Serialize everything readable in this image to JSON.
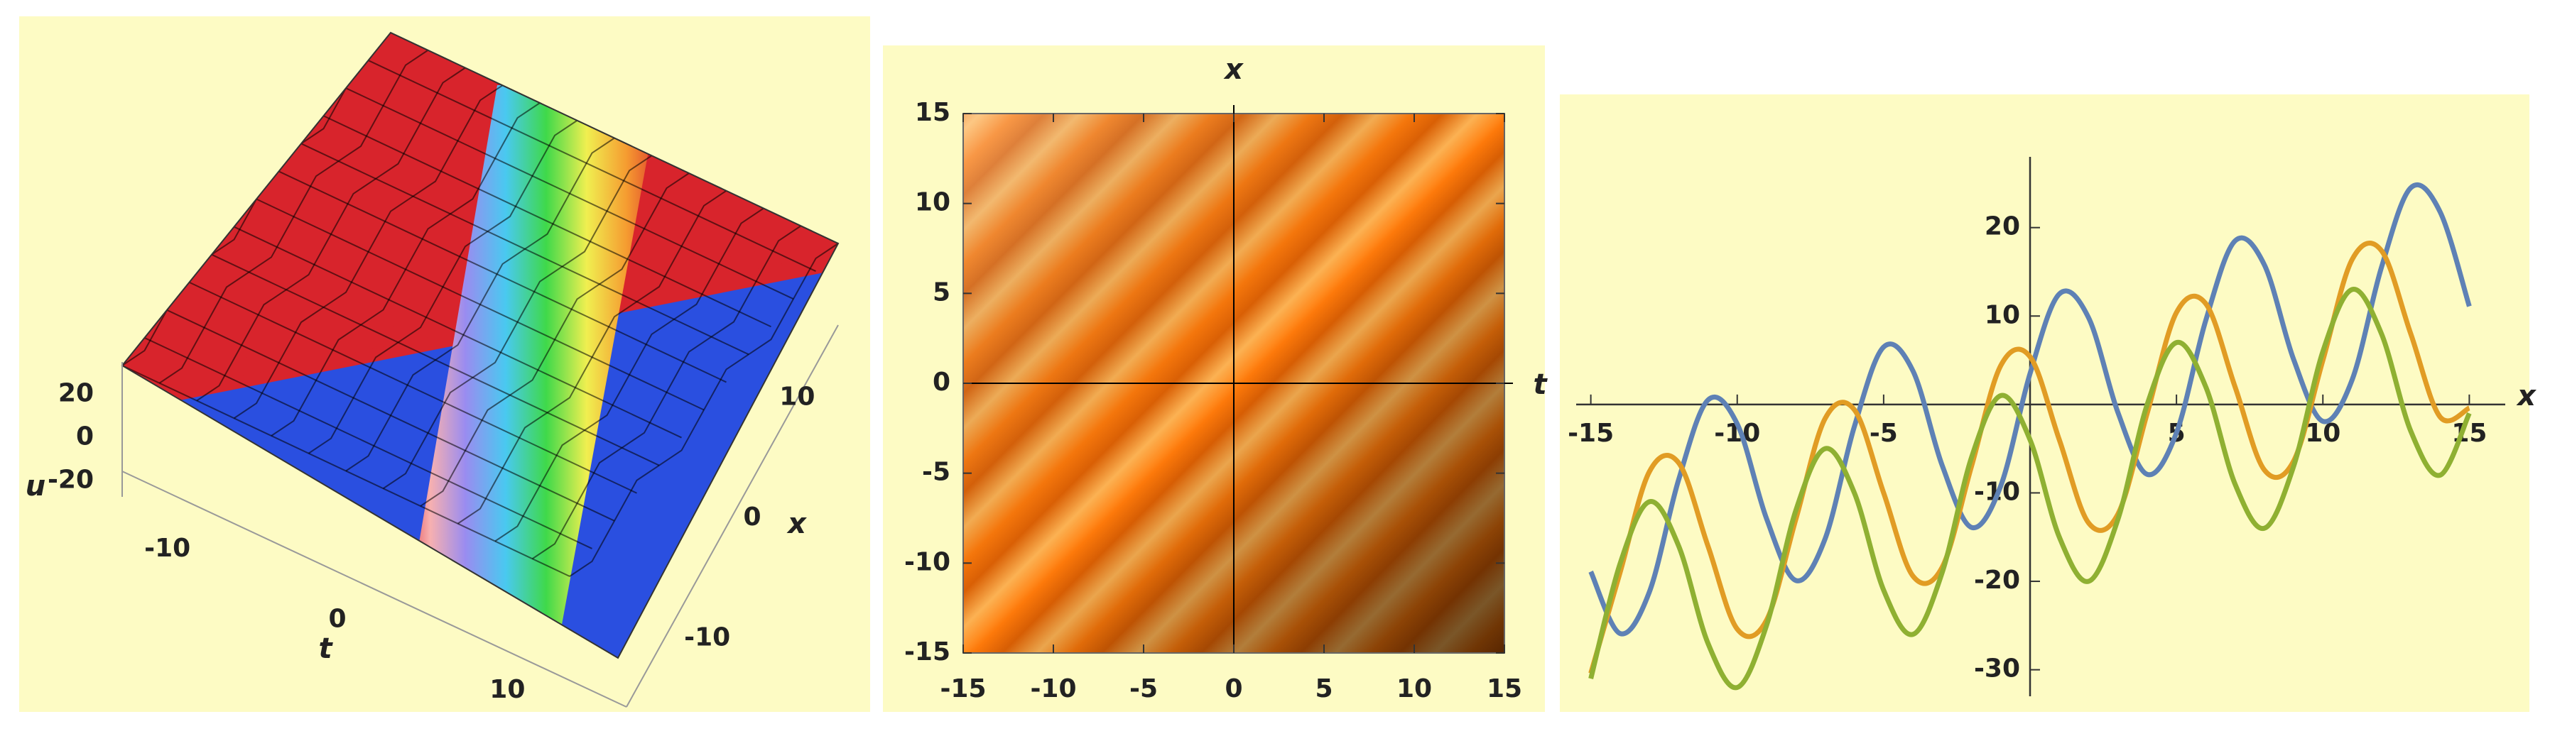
{
  "chart_data": [
    {
      "type": "surface3d",
      "xlabel": "x",
      "ylabel": "t",
      "zlabel": "u",
      "xlim": [
        -15,
        15
      ],
      "xticks": [
        -10,
        0,
        10
      ],
      "ylim": [
        -15,
        15
      ],
      "yticks": [
        -10,
        0,
        10
      ],
      "zlim": [
        -30,
        30
      ],
      "zticks": [
        -20,
        0,
        20
      ]
    },
    {
      "type": "density",
      "xlabel": "t",
      "ylabel": "x",
      "xlim": [
        -15,
        15
      ],
      "xticks": [
        -15,
        -10,
        -5,
        0,
        5,
        10,
        15
      ],
      "ylim": [
        -15,
        15
      ],
      "yticks": [
        -15,
        -10,
        -5,
        0,
        5,
        10,
        15
      ]
    },
    {
      "type": "line",
      "xlabel": "x",
      "x": [
        -15,
        -14,
        -13,
        -12,
        -11,
        -10,
        -9,
        -8,
        -7,
        -6,
        -5,
        -4,
        -3,
        -2,
        -1,
        0,
        1,
        2,
        3,
        4,
        5,
        6,
        7,
        8,
        9,
        10,
        11,
        12,
        13,
        14,
        15
      ],
      "xlim": [
        -15.5,
        15.5
      ],
      "xticks": [
        -15,
        -10,
        -5,
        5,
        10,
        15
      ],
      "ylim": [
        -33,
        28
      ],
      "yticks": [
        -30,
        -20,
        -10,
        10,
        20
      ],
      "series": [
        {
          "color": "#5e81b5",
          "values": [
            -18.9,
            -25.9,
            -21.2,
            -8.5,
            0.5,
            -2.2,
            -12.9,
            -19.9,
            -15.2,
            -2.5,
            6.5,
            3.8,
            -6.9,
            -13.9,
            -9.2,
            3.5,
            12.5,
            9.8,
            -0.9,
            -7.9,
            -3.2,
            9.5,
            18.5,
            15.8,
            5.1,
            -1.9,
            2.8,
            15.5,
            24.5,
            21.8,
            11.1
          ]
        },
        {
          "color": "#e19c24",
          "values": [
            -30.4,
            -19,
            -7.6,
            -6.6,
            -16,
            -25.4,
            -24.4,
            -13,
            -1.6,
            -0.6,
            -10,
            -19.4,
            -18.4,
            -7,
            4.4,
            5.4,
            -4,
            -13.4,
            -12.4,
            -1,
            10.4,
            11.4,
            2,
            -7.4,
            -6.4,
            5,
            16.4,
            17.4,
            8,
            -1.4,
            -0.4
          ]
        },
        {
          "color": "#8fb032",
          "values": [
            -31,
            -18,
            -11,
            -16,
            -27,
            -32,
            -25,
            -12,
            -5,
            -10,
            -21,
            -26,
            -19,
            -6,
            1,
            -4,
            -15,
            -20,
            -13,
            0,
            7,
            2,
            -9,
            -14,
            -7,
            6,
            13,
            8,
            -3,
            -8,
            -1
          ]
        }
      ]
    }
  ]
}
